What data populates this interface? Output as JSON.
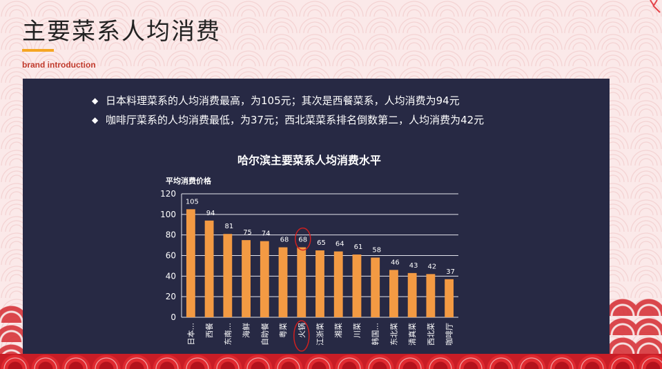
{
  "page": {
    "title": "主要菜系人均消费",
    "subtitle": "brand introduction"
  },
  "bullets": [
    "日本料理菜系的人均消费最高，为105元；其次是西餐菜系，人均消费为94元",
    "咖啡厅菜系的人均消费最低，为37元；西北菜菜系排名倒数第二，人均消费为42元"
  ],
  "bullet_symbol": "◆",
  "colors": {
    "panel_bg": "#272944",
    "bar": "#f39a43",
    "highlight": "#d0201f",
    "accent_line": "#f5a623"
  },
  "chart_data": {
    "type": "bar",
    "title": "哈尔滨主要菜系人均消费水平",
    "ylabel": "平均消费价格",
    "xlabel": "",
    "ylim": [
      0,
      120
    ],
    "yticks": [
      0,
      20,
      40,
      60,
      80,
      100,
      120
    ],
    "grid": true,
    "categories": [
      "日本...",
      "西餐",
      "东南...",
      "海鲜",
      "自助餐",
      "粤菜",
      "火锅",
      "江浙菜",
      "湘菜",
      "川菜",
      "韩国...",
      "东北菜",
      "清真菜",
      "西北菜",
      "咖啡厅"
    ],
    "values": [
      105,
      94,
      81,
      75,
      74,
      68,
      68,
      65,
      64,
      61,
      58,
      46,
      43,
      42,
      37
    ],
    "highlighted_category": "火锅"
  }
}
